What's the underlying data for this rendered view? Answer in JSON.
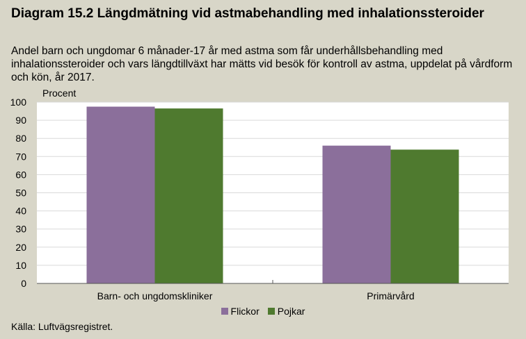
{
  "title": "Diagram 15.2 Längdmätning vid astmabehandling med inhalationssteroider",
  "subtitle": "Andel barn och ungdomar 6 månader-17 år med astma som får underhållsbehandling med inhalationssteroider och vars längdtillväxt har mätts vid besök för kontroll av astma, uppdelat på vårdform och kön, år 2017.",
  "source": "Källa: Luftvägsregistret.",
  "chart_data": {
    "type": "bar",
    "categories": [
      "Barn- och ungdomskliniker",
      "Primärvård"
    ],
    "series": [
      {
        "name": "Flickor",
        "values": [
          97.5,
          76
        ],
        "color": "#8b6f9b"
      },
      {
        "name": "Pojkar",
        "values": [
          96.5,
          73.8
        ],
        "color": "#4f7a2f"
      }
    ],
    "ylabel": "Procent",
    "ylim": [
      0,
      100
    ],
    "yticks": [
      0,
      10,
      20,
      30,
      40,
      50,
      60,
      70,
      80,
      90,
      100
    ],
    "grid": true,
    "legend_position": "bottom"
  }
}
